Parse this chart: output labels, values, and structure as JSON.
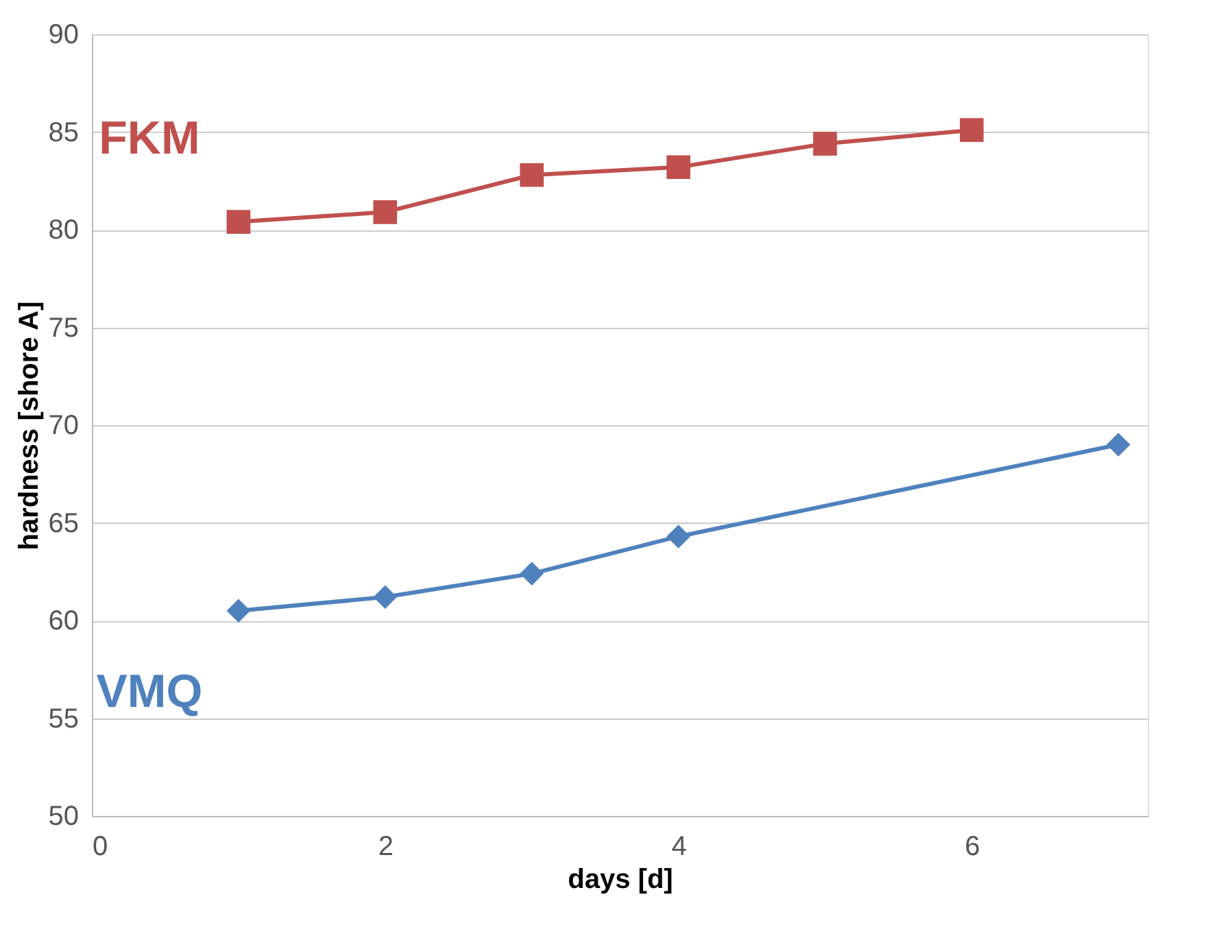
{
  "chart_data": {
    "type": "line",
    "xlabel": "days [d]",
    "ylabel": "hardness [shore A]",
    "xlim": [
      0,
      7.2
    ],
    "xticks": [
      0,
      2,
      4,
      6
    ],
    "ylim": [
      50,
      90
    ],
    "yticks": [
      50,
      55,
      60,
      65,
      70,
      75,
      80,
      85,
      90
    ],
    "grid": "y",
    "legend": false,
    "series": [
      {
        "name": "FKM",
        "color": "#c0504d",
        "marker": "square",
        "x": [
          1,
          2,
          3,
          4,
          5,
          6
        ],
        "values": [
          80.4,
          80.9,
          82.8,
          83.2,
          84.4,
          85.1
        ]
      },
      {
        "name": "VMQ",
        "color": "#4f81bd",
        "marker": "diamond",
        "x": [
          1,
          2,
          3,
          4,
          7
        ],
        "values": [
          60.5,
          61.2,
          62.4,
          64.3,
          69.0
        ]
      }
    ]
  }
}
